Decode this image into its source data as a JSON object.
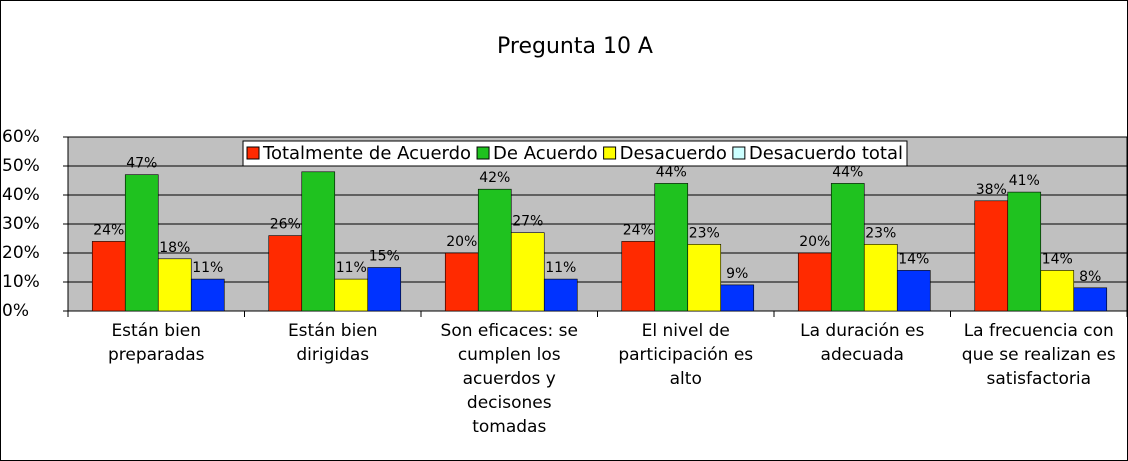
{
  "chart_data": {
    "type": "bar",
    "title": "Pregunta 10 A",
    "categories": [
      "Están bien preparadas",
      "Están bien dirigidas",
      "Son eficaces: se cumplen los acuerdos y decisones tomadas",
      "El nivel de participación es alto",
      "La duración es adecuada",
      "La frecuencia con que se realizan es satisfactoria"
    ],
    "series": [
      {
        "name": "Totalmente de Acuerdo",
        "color": "#ff2a00",
        "values": [
          24,
          26,
          20,
          24,
          20,
          38
        ],
        "value_labels": [
          "24%",
          "26%",
          "20%",
          "24%",
          "20%",
          "38%"
        ]
      },
      {
        "name": "De Acuerdo",
        "color": "#1fc21f",
        "values": [
          47,
          48,
          42,
          44,
          44,
          41
        ],
        "value_labels": [
          "47%",
          "48%",
          "42%",
          "44%",
          "44%",
          "41%"
        ]
      },
      {
        "name": "Desacuerdo",
        "color": "#ffff00",
        "values": [
          18,
          11,
          27,
          23,
          23,
          14
        ],
        "value_labels": [
          "18%",
          "11%",
          "27%",
          "23%",
          "23%",
          "14%"
        ]
      },
      {
        "name": "Desacuerdo total",
        "color": "#0033ff",
        "legend_color": "#ccffff",
        "values": [
          11,
          15,
          11,
          9,
          14,
          8
        ],
        "value_labels": [
          "11%",
          "15%",
          "11%",
          "9%",
          "14%",
          "8%"
        ]
      }
    ],
    "ylim": [
      0,
      60
    ],
    "yticks": [
      {
        "value": 0,
        "label": "0%"
      },
      {
        "value": 10,
        "label": "10%"
      },
      {
        "value": 20,
        "label": "20%"
      },
      {
        "value": 30,
        "label": "30%"
      },
      {
        "value": 40,
        "label": "40%"
      },
      {
        "value": 50,
        "label": "50%"
      },
      {
        "value": 60,
        "label": "60%"
      }
    ],
    "grid": true,
    "legend": "top"
  }
}
